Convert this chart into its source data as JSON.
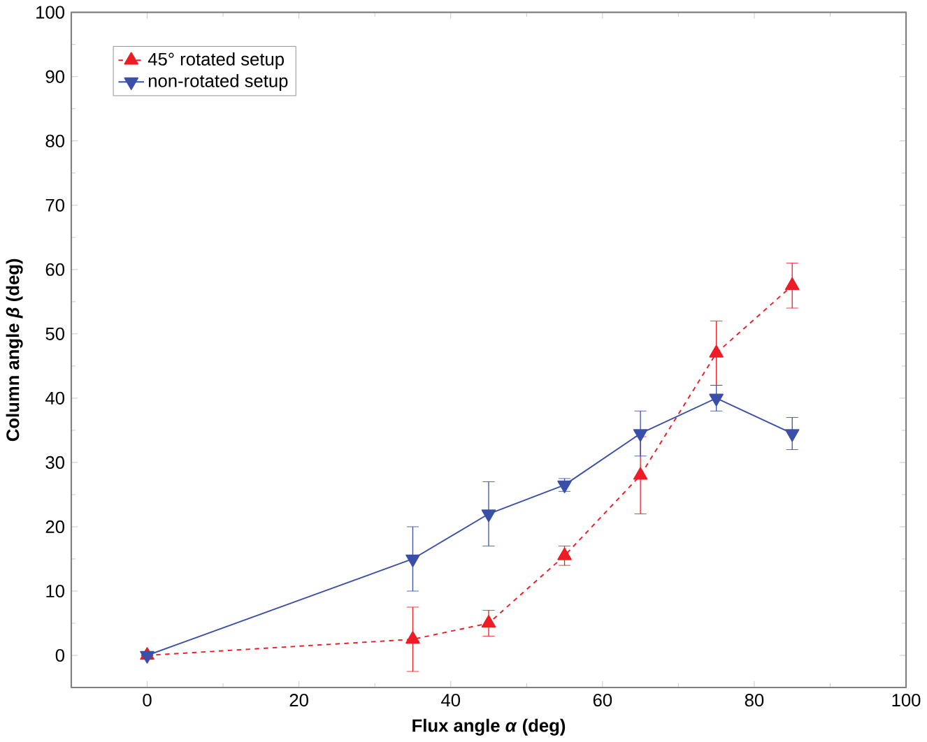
{
  "chart_data": {
    "type": "line",
    "xlabel": "Flux angle *α* (deg)",
    "ylabel": "Column angle *β* (deg)",
    "x": [
      0,
      35,
      45,
      55,
      65,
      75,
      85
    ],
    "series": [
      {
        "name": "45° rotated setup",
        "color": "#ee1c25",
        "marker": "triangle",
        "line_style": "dashed",
        "values": [
          0,
          2.5,
          5,
          15.5,
          28,
          47,
          57.5
        ],
        "errors": [
          null,
          5,
          2,
          1.5,
          6,
          5,
          3.5
        ]
      },
      {
        "name": "non-rotated setup",
        "color": "#3a4fa8",
        "marker": "triangle-down",
        "line_style": "solid",
        "values": [
          0,
          15,
          22,
          26.5,
          34.5,
          40,
          34.5
        ],
        "errors": [
          null,
          5,
          5,
          1,
          3.5,
          2,
          2.5
        ]
      }
    ],
    "xlim": [
      -10,
      100
    ],
    "xticks": [
      0,
      20,
      40,
      60,
      80,
      100
    ],
    "ylim": [
      -5,
      100
    ],
    "yticks": [
      0,
      10,
      20,
      30,
      40,
      50,
      60,
      70,
      80,
      90,
      100
    ],
    "legend": "top left",
    "grid": false
  }
}
